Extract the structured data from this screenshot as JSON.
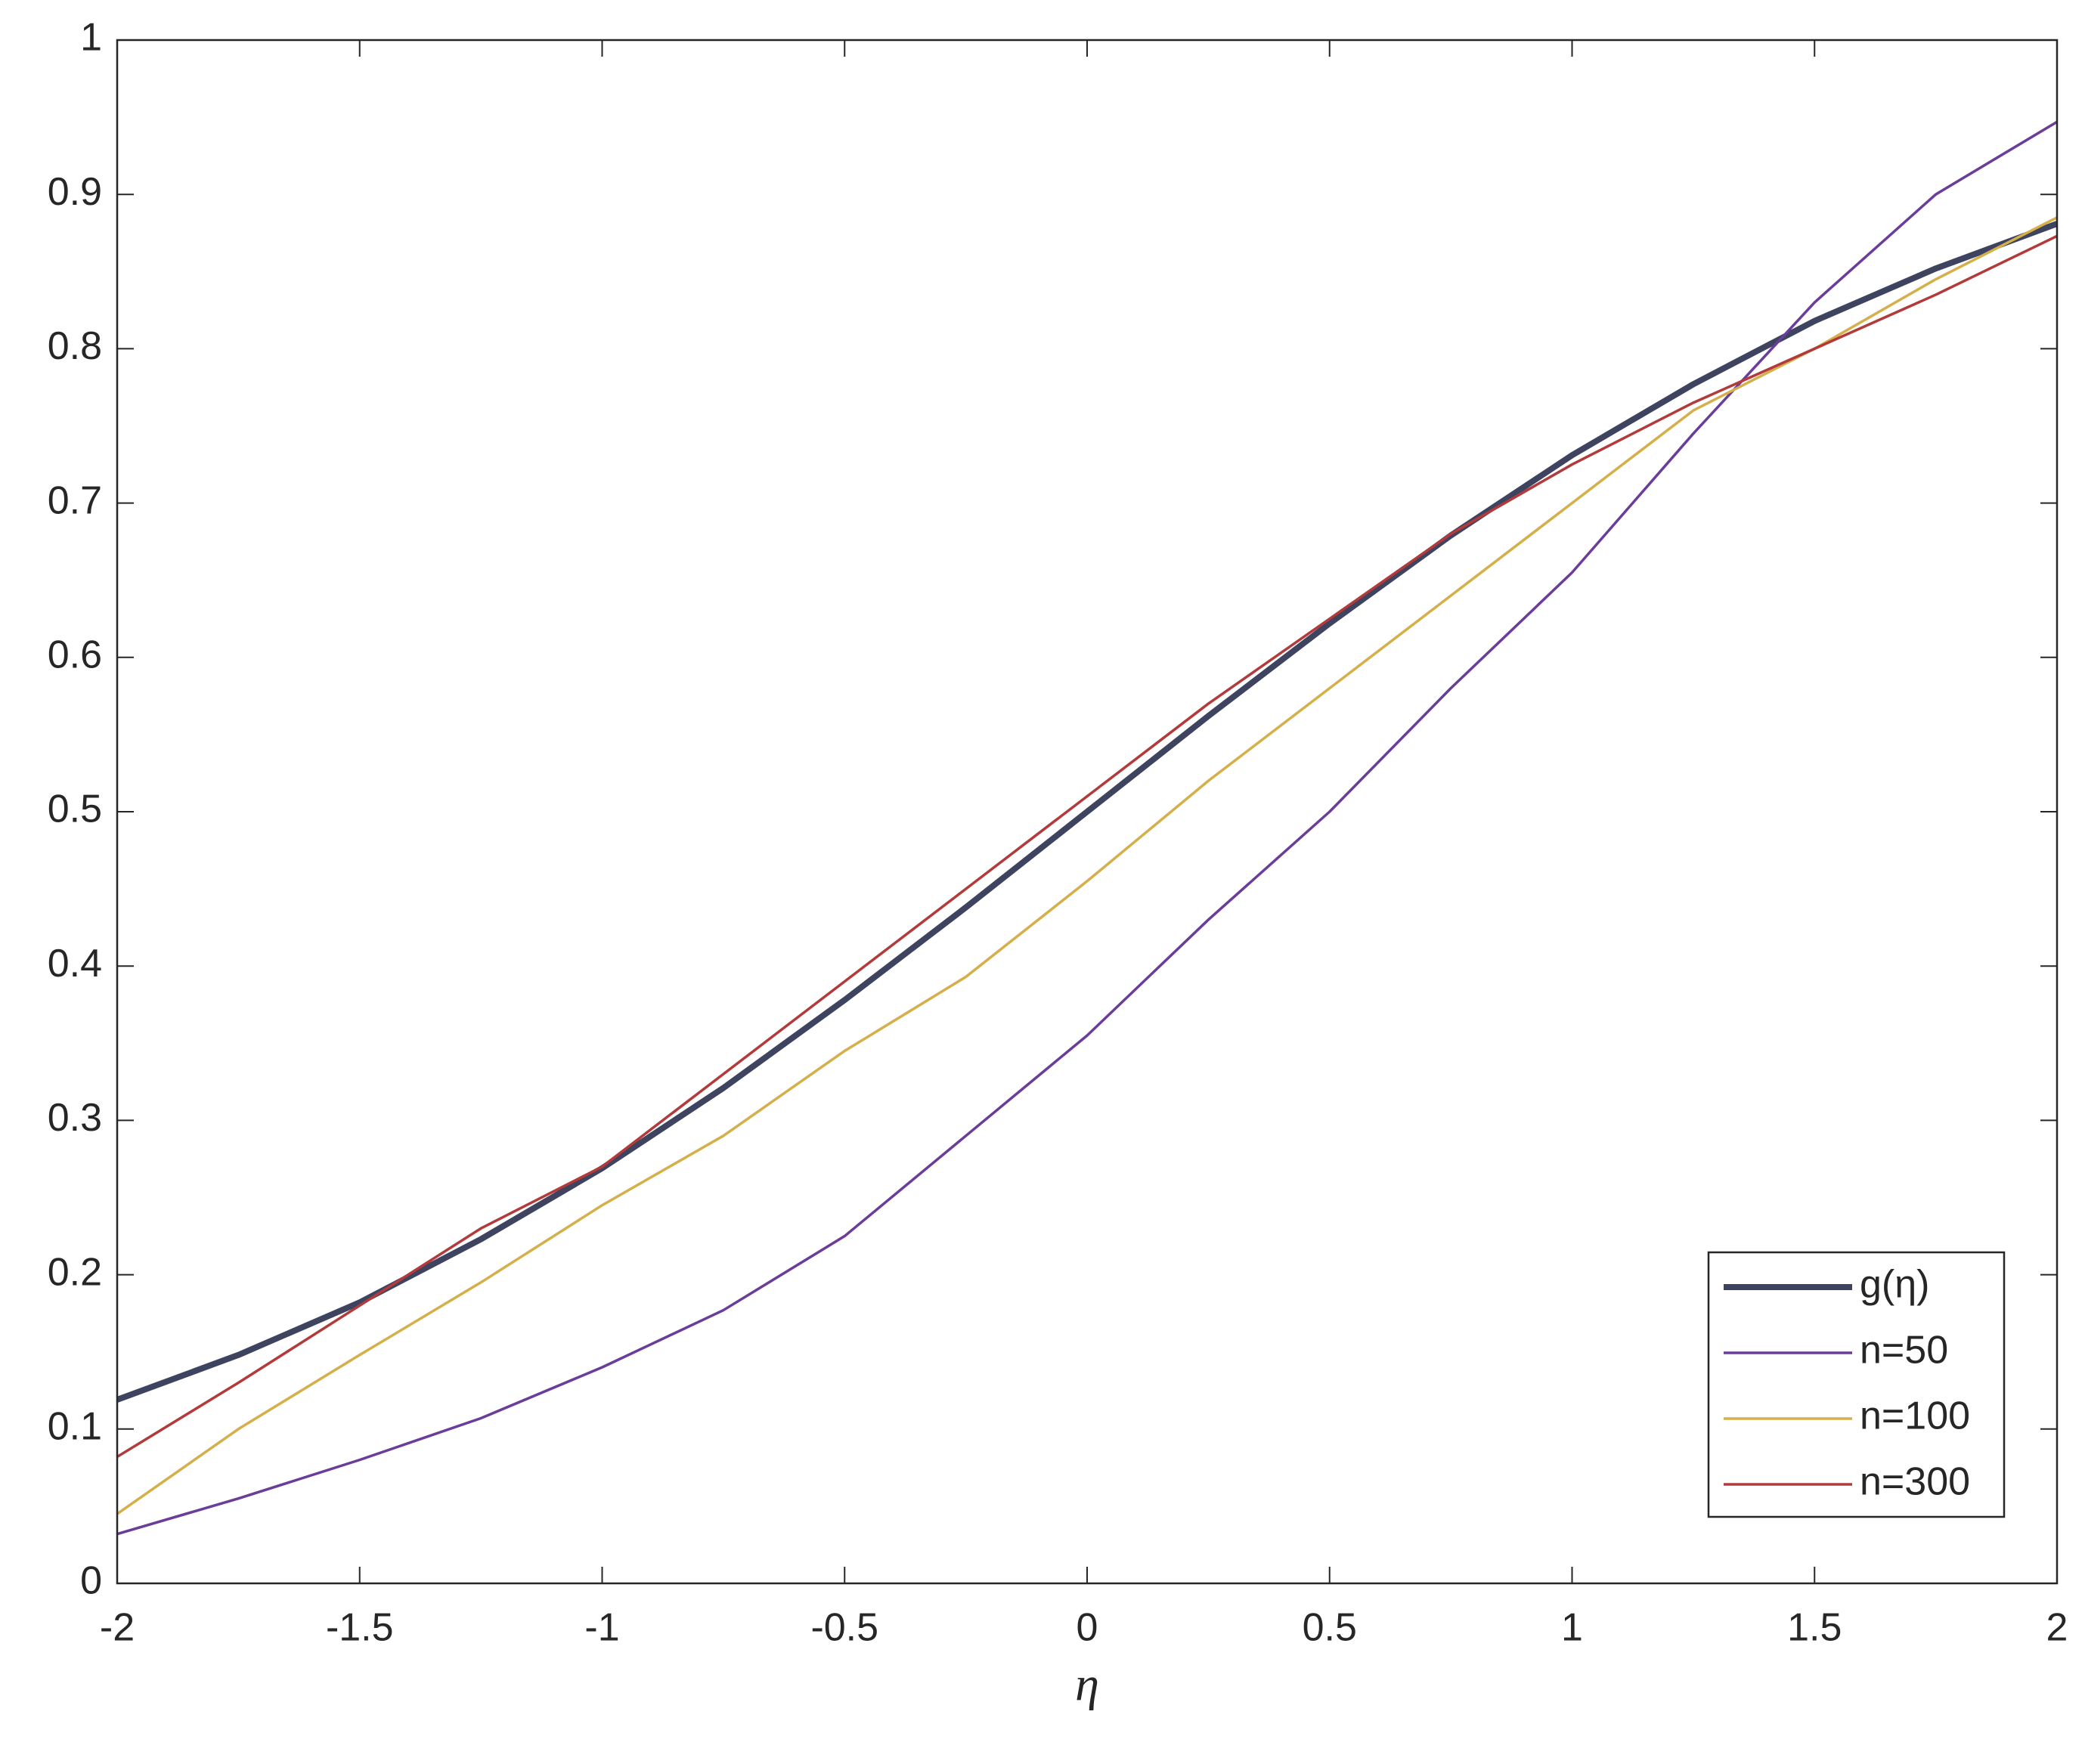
{
  "chart_data": {
    "type": "line",
    "x_label": "η",
    "x": [
      -2,
      -1.75,
      -1.5,
      -1.25,
      -1,
      -0.75,
      -0.5,
      -0.25,
      0,
      0.25,
      0.5,
      0.75,
      1,
      1.25,
      1.5,
      1.75,
      2
    ],
    "series": [
      {
        "name": "g(η)",
        "color": "#3e4360",
        "values": [
          0.119,
          0.148,
          0.182,
          0.223,
          0.269,
          0.321,
          0.378,
          0.438,
          0.5,
          0.562,
          0.622,
          0.679,
          0.731,
          0.777,
          0.818,
          0.852,
          0.881
        ]
      },
      {
        "name": "n=50",
        "color": "#6a3d9a",
        "values": [
          0.032,
          0.055,
          0.08,
          0.107,
          0.14,
          0.177,
          0.225,
          0.29,
          0.355,
          0.43,
          0.5,
          0.58,
          0.655,
          0.745,
          0.83,
          0.9,
          0.947
        ]
      },
      {
        "name": "n=100",
        "color": "#d4af4a",
        "values": [
          0.045,
          0.1,
          0.148,
          0.195,
          0.245,
          0.29,
          0.345,
          0.393,
          0.455,
          0.52,
          0.58,
          0.64,
          0.7,
          0.76,
          0.8,
          0.845,
          0.885
        ]
      },
      {
        "name": "n=300",
        "color": "#b33a3a",
        "values": [
          0.082,
          0.13,
          0.18,
          0.23,
          0.27,
          0.33,
          0.39,
          0.45,
          0.51,
          0.57,
          0.625,
          0.68,
          0.725,
          0.765,
          0.8,
          0.835,
          0.873
        ]
      }
    ],
    "xlim": [
      -2,
      2
    ],
    "xticks": [
      -2,
      -1.5,
      -1,
      -0.5,
      0,
      0.5,
      1,
      1.5,
      2
    ],
    "ylim": [
      0,
      1
    ],
    "yticks": [
      0,
      0.1,
      0.2,
      0.3,
      0.4,
      0.5,
      0.6,
      0.7,
      0.8,
      0.9,
      1
    ],
    "grid": false,
    "legend": "southeast"
  }
}
